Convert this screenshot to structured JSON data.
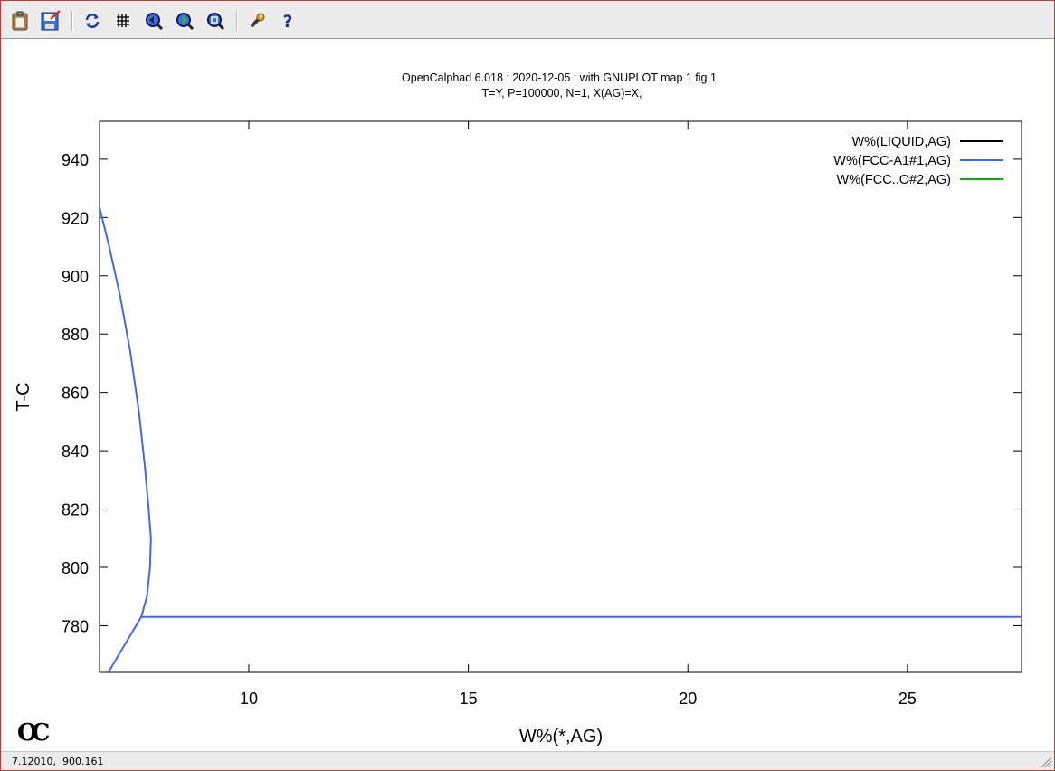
{
  "toolbar": {
    "buttons": [
      {
        "name": "copy-clipboard-button",
        "icon": "clipboard-icon"
      },
      {
        "name": "export-button",
        "icon": "export-icon"
      },
      {
        "name": "replot-button",
        "icon": "refresh-icon"
      },
      {
        "name": "grid-button",
        "icon": "grid-icon"
      },
      {
        "name": "previous-zoom-button",
        "icon": "previous-zoom-icon"
      },
      {
        "name": "next-zoom-button",
        "icon": "next-zoom-icon"
      },
      {
        "name": "autoscale-button",
        "icon": "autoscale-icon"
      },
      {
        "name": "settings-button",
        "icon": "wrench-icon"
      },
      {
        "name": "help-button",
        "icon": "help-icon"
      }
    ]
  },
  "status": {
    "cursor": "7.12010,  900.161"
  },
  "logo": "OC",
  "chart_data": {
    "type": "line",
    "title": "OpenCalphad   6.018 :  2020-12-05 : with GNUPLOT map 1 fig 1",
    "subtitle": "T=Y,  P=100000, N=1, X(AG)=X,",
    "xlabel": "W%(*,AG)",
    "ylabel": "T-C",
    "xlim": [
      6.6,
      27.6
    ],
    "ylim": [
      764,
      953
    ],
    "xticks": [
      10,
      15,
      20,
      25
    ],
    "yticks": [
      780,
      800,
      820,
      840,
      860,
      880,
      900,
      920,
      940
    ],
    "grid": false,
    "legend_position": "top-right",
    "series": [
      {
        "name": "W%(LIQUID,AG)",
        "color": "#000000",
        "x": [],
        "y": []
      },
      {
        "name": "W%(FCC-A1#1,AG)",
        "color": "#4169e1",
        "x": [
          6.6,
          6.82,
          7.07,
          7.3,
          7.5,
          7.63,
          7.72,
          7.77,
          7.75,
          7.68,
          7.55
        ],
        "y": [
          923.5,
          910,
          893,
          874,
          853,
          835,
          820,
          810,
          800,
          790,
          783
        ]
      },
      {
        "name": "W%(FCC-A1#1,AG)",
        "color": "#4169e1",
        "x": [
          7.55,
          27.6
        ],
        "y": [
          783,
          783
        ]
      },
      {
        "name": "W%(FCC-A1#1,AG)",
        "color": "#4169e1",
        "x": [
          7.55,
          6.8
        ],
        "y": [
          783,
          764
        ]
      },
      {
        "name": "W%(FCC..O#2,AG)",
        "color": "#00b000",
        "x": [],
        "y": []
      }
    ],
    "legend": [
      {
        "label": "W%(LIQUID,AG)",
        "color": "#000000"
      },
      {
        "label": "W%(FCC-A1#1,AG)",
        "color": "#4169e1"
      },
      {
        "label": "W%(FCC..O#2,AG)",
        "color": "#00b000"
      }
    ]
  }
}
